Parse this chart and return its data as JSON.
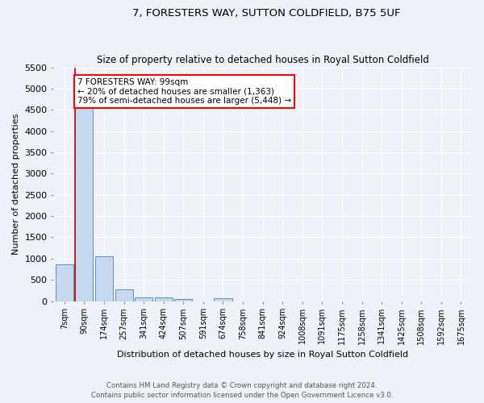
{
  "title": "7, FORESTERS WAY, SUTTON COLDFIELD, B75 5UF",
  "subtitle": "Size of property relative to detached houses in Royal Sutton Coldfield",
  "xlabel": "Distribution of detached houses by size in Royal Sutton Coldfield",
  "ylabel": "Number of detached properties",
  "bar_color": "#c5d8ee",
  "bar_edge_color": "#5b8fc9",
  "categories": [
    "7sqm",
    "90sqm",
    "174sqm",
    "257sqm",
    "341sqm",
    "424sqm",
    "507sqm",
    "591sqm",
    "674sqm",
    "758sqm",
    "841sqm",
    "924sqm",
    "1008sqm",
    "1091sqm",
    "1175sqm",
    "1258sqm",
    "1341sqm",
    "1425sqm",
    "1508sqm",
    "1592sqm",
    "1675sqm"
  ],
  "values": [
    870,
    4550,
    1050,
    285,
    90,
    80,
    50,
    0,
    60,
    0,
    0,
    0,
    0,
    0,
    0,
    0,
    0,
    0,
    0,
    0,
    0
  ],
  "ylim": [
    0,
    5500
  ],
  "yticks": [
    0,
    500,
    1000,
    1500,
    2000,
    2500,
    3000,
    3500,
    4000,
    4500,
    5000,
    5500
  ],
  "annotation_line1": "7 FORESTERS WAY: 99sqm",
  "annotation_line2": "← 20% of detached houses are smaller (1,363)",
  "annotation_line3": "79% of semi-detached houses are larger (5,448) →",
  "annotation_box_color": "white",
  "annotation_box_edge_color": "red",
  "red_line_color": "#cc0000",
  "footer_line1": "Contains HM Land Registry data © Crown copyright and database right 2024.",
  "footer_line2": "Contains public sector information licensed under the Open Government Licence v3.0.",
  "background_color": "#eef2f8",
  "grid_color": "white"
}
